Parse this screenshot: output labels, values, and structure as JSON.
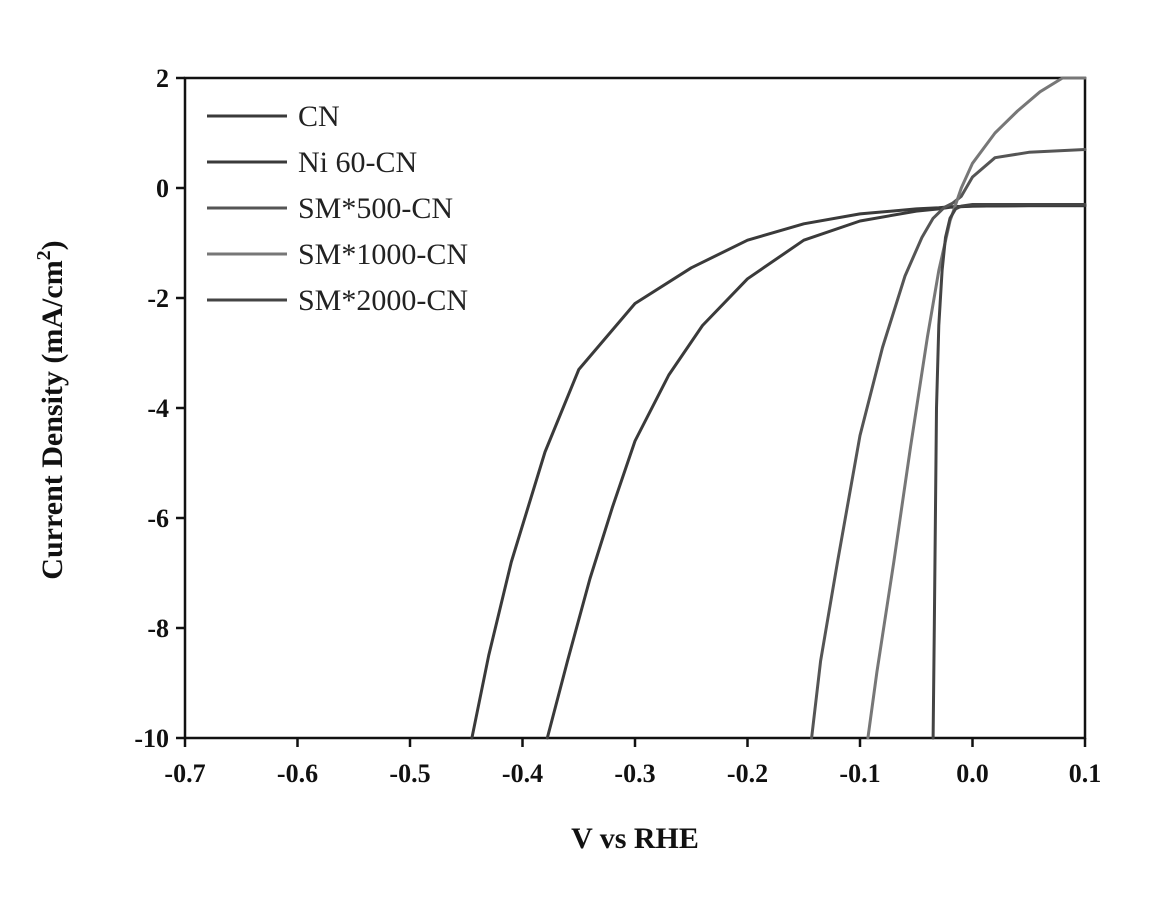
{
  "chart_data": {
    "type": "line",
    "title": "",
    "xlabel": "V vs RHE",
    "ylabel": "Current Density (mA/cm",
    "ylabel_superscript": "2",
    "ylabel_close": ")",
    "xlim": [
      -0.7,
      0.1
    ],
    "ylim": [
      -10,
      2
    ],
    "x_ticks": [
      -0.7,
      -0.6,
      -0.5,
      -0.4,
      -0.3,
      -0.2,
      -0.1,
      0.0,
      0.1
    ],
    "x_tick_labels": [
      "-0.7",
      "-0.6",
      "-0.5",
      "-0.4",
      "-0.3",
      "-0.2",
      "-0.1",
      "0.0",
      "0.1"
    ],
    "y_ticks": [
      -10,
      -8,
      -6,
      -4,
      -2,
      0,
      2
    ],
    "y_tick_labels": [
      "-10",
      "-8",
      "-6",
      "-4",
      "-2",
      "0",
      "2"
    ],
    "grid": false,
    "legend_position": "top-left",
    "series": [
      {
        "name": "CN",
        "color": "#3a3a3a",
        "x": [
          -0.445,
          -0.43,
          -0.41,
          -0.38,
          -0.35,
          -0.3,
          -0.25,
          -0.2,
          -0.15,
          -0.1,
          -0.05,
          -0.03,
          -0.02,
          0.0,
          0.05,
          0.1
        ],
        "y": [
          -10,
          -8.5,
          -6.8,
          -4.8,
          -3.3,
          -2.1,
          -1.45,
          -0.95,
          -0.65,
          -0.47,
          -0.38,
          -0.36,
          -0.34,
          -0.33,
          -0.32,
          -0.32
        ]
      },
      {
        "name": "Ni 60-CN",
        "color": "#3a3a3a",
        "x": [
          -0.378,
          -0.36,
          -0.34,
          -0.32,
          -0.3,
          -0.27,
          -0.24,
          -0.2,
          -0.15,
          -0.1,
          -0.05,
          -0.03,
          -0.02,
          0.0,
          0.05,
          0.1
        ],
        "y": [
          -10,
          -8.6,
          -7.1,
          -5.8,
          -4.6,
          -3.4,
          -2.5,
          -1.65,
          -0.95,
          -0.6,
          -0.42,
          -0.38,
          -0.35,
          -0.33,
          -0.32,
          -0.32
        ]
      },
      {
        "name": "SM*500-CN",
        "color": "#555555",
        "x": [
          -0.143,
          -0.135,
          -0.12,
          -0.1,
          -0.08,
          -0.06,
          -0.045,
          -0.035,
          -0.025,
          -0.018,
          -0.01,
          0.0,
          0.02,
          0.05,
          0.1
        ],
        "y": [
          -10,
          -8.6,
          -6.8,
          -4.5,
          -2.9,
          -1.6,
          -0.9,
          -0.55,
          -0.35,
          -0.28,
          -0.15,
          0.2,
          0.55,
          0.65,
          0.7
        ]
      },
      {
        "name": "SM*1000-CN",
        "color": "#777777",
        "x": [
          -0.093,
          -0.085,
          -0.07,
          -0.055,
          -0.04,
          -0.03,
          -0.02,
          -0.01,
          0.0,
          0.02,
          0.04,
          0.06,
          0.08,
          0.1
        ],
        "y": [
          -10,
          -8.8,
          -6.8,
          -4.7,
          -2.7,
          -1.5,
          -0.6,
          0.0,
          0.45,
          1.0,
          1.4,
          1.75,
          2.0,
          2.0
        ]
      },
      {
        "name": "SM*2000-CN",
        "color": "#444444",
        "x": [
          -0.035,
          -0.034,
          -0.033,
          -0.032,
          -0.03,
          -0.027,
          -0.024,
          -0.02,
          -0.015,
          -0.01,
          0.0,
          0.05,
          0.1
        ],
        "y": [
          -10,
          -8.0,
          -6.0,
          -4.0,
          -2.5,
          -1.5,
          -0.9,
          -0.55,
          -0.38,
          -0.33,
          -0.3,
          -0.3,
          -0.3
        ]
      }
    ]
  }
}
